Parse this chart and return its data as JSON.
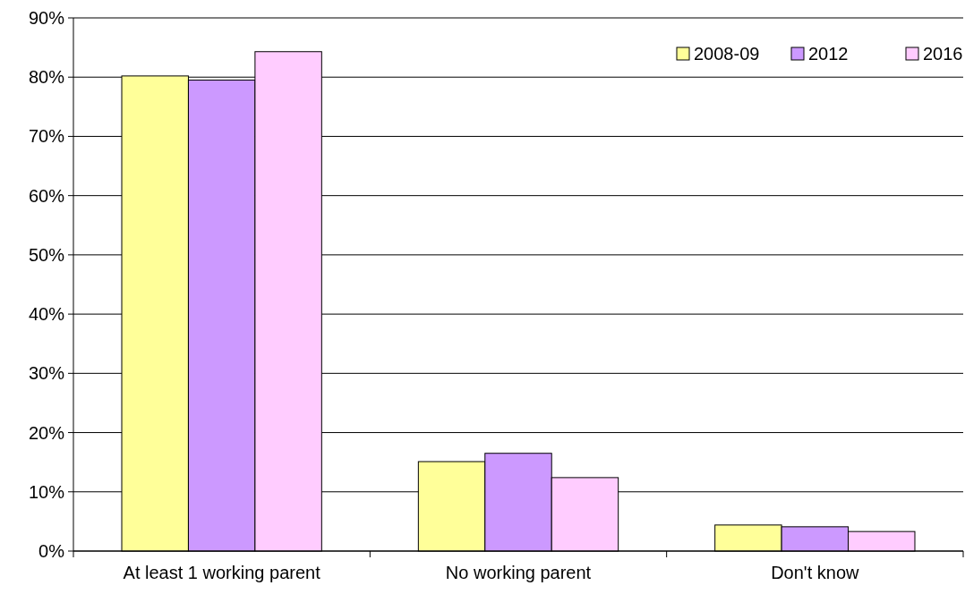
{
  "chart_data": {
    "type": "bar",
    "categories": [
      "At least 1 working parent",
      "No working parent",
      "Don't know"
    ],
    "series": [
      {
        "name": "2008-09",
        "color": "#ffff99",
        "values": [
          80.2,
          15.1,
          4.4
        ]
      },
      {
        "name": "2012",
        "color": "#cc99ff",
        "values": [
          79.5,
          16.5,
          4.1
        ]
      },
      {
        "name": "2016",
        "color": "#ffccff",
        "values": [
          84.3,
          12.4,
          3.3
        ]
      }
    ],
    "ylim": [
      0,
      90
    ],
    "yticks": [
      {
        "value": 0,
        "label": "0%"
      },
      {
        "value": 10,
        "label": "10%"
      },
      {
        "value": 20,
        "label": "20%"
      },
      {
        "value": 30,
        "label": "30%"
      },
      {
        "value": 40,
        "label": "40%"
      },
      {
        "value": 50,
        "label": "50%"
      },
      {
        "value": 60,
        "label": "60%"
      },
      {
        "value": 70,
        "label": "70%"
      },
      {
        "value": 80,
        "label": "80%"
      },
      {
        "value": 90,
        "label": "90%"
      }
    ],
    "grid": "y",
    "legend": "top right"
  }
}
